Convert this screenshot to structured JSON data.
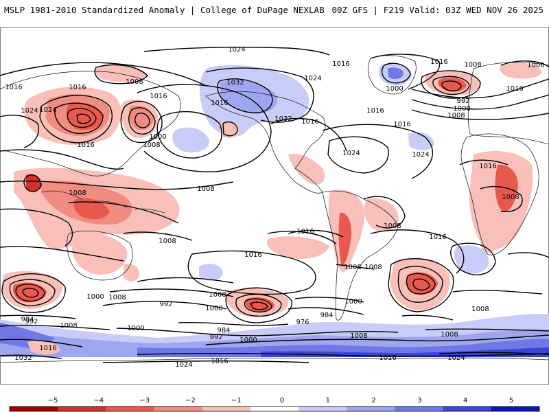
{
  "header": {
    "left_title": "MSLP 1981-2010 Standardized Anomaly | College of DuPage NEXLAB",
    "right_title": "00Z GFS | F219 Valid: 03Z WED NOV 26 2025"
  },
  "map": {
    "isobar_labels": [
      "1024",
      "1016",
      "1000",
      "1016",
      "1008",
      "1016",
      "1008",
      "1016",
      "1024",
      "1032",
      "1016",
      "1032",
      "1024",
      "1016",
      "1024",
      "1016",
      "1016",
      "1000",
      "992",
      "1000",
      "1008",
      "1016",
      "1024",
      "1016",
      "1024",
      "1000",
      "1008",
      "1016",
      "1008",
      "1008",
      "1008",
      "1016",
      "1016",
      "1008",
      "1008",
      "1008",
      "1016",
      "1008",
      "1016",
      "1000",
      "1008",
      "992",
      "1000",
      "984",
      "992",
      "1008",
      "1000",
      "1016",
      "1032",
      "1024",
      "984",
      "976",
      "992",
      "1008",
      "1000",
      "984",
      "1008",
      "1016",
      "1024",
      "1000",
      "1008",
      "1016",
      "1008"
    ],
    "colors": {
      "neg5": "#a50000",
      "neg4": "#d03030",
      "neg3": "#e8594d",
      "neg2": "#f08c80",
      "neg1": "#f8c0b8",
      "zero": "#ffffff",
      "pos1": "#c8ccf8",
      "pos2": "#9ea6f0",
      "pos3": "#7078e6",
      "pos4": "#3a46d8",
      "pos5": "#0a14b8"
    }
  },
  "colorbar": {
    "tick_labels": [
      "−5",
      "−4",
      "−3",
      "−2",
      "−1",
      "0",
      "1",
      "2",
      "3",
      "4",
      "5"
    ],
    "colors": [
      "#a50000",
      "#d03030",
      "#e8594d",
      "#f08c80",
      "#f8c0b8",
      "#ffffff",
      "#c8ccf8",
      "#9ea6f0",
      "#7078e6",
      "#3a46d8",
      "#0a14b8"
    ]
  }
}
